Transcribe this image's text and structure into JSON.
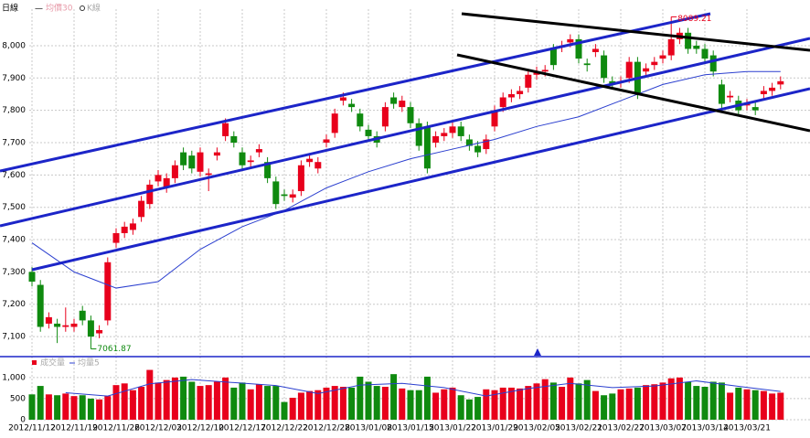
{
  "chart_data": [
    {
      "type": "candlestick",
      "title": "日線",
      "legend": [
        "均價30",
        "K線"
      ],
      "up_color": "#e8001c",
      "down_color": "#0f8a0f",
      "open": [
        7300,
        7260,
        7140,
        7140,
        7130,
        7130,
        7180,
        7150,
        7110,
        7150,
        7390,
        7420,
        7430,
        7470,
        7510,
        7580,
        7560,
        7590,
        7670,
        7660,
        7610,
        7600,
        7660,
        7720,
        7720,
        7670,
        7640,
        7670,
        7640,
        7580,
        7540,
        7530,
        7550,
        7640,
        7620,
        7700,
        7730,
        7830,
        7820,
        7790,
        7740,
        7720,
        7750,
        7840,
        7810,
        7810,
        7760,
        7750,
        7700,
        7720,
        7730,
        7750,
        7710,
        7690,
        7680,
        7750,
        7810,
        7840,
        7850,
        7870,
        7910,
        7920,
        7990,
        7995,
        8010,
        8020,
        7945,
        7980,
        7970,
        7890,
        7885,
        7900,
        7950,
        7920,
        7940,
        7960,
        7970,
        8020,
        8040,
        8000,
        7990,
        7970,
        7880,
        7840,
        7830,
        7815,
        7810,
        7850,
        7860,
        7880
      ],
      "high": [
        7315,
        7275,
        7175,
        7155,
        7190,
        7155,
        7195,
        7165,
        7135,
        7345,
        7435,
        7455,
        7465,
        7535,
        7585,
        7615,
        7605,
        7645,
        7685,
        7675,
        7685,
        7620,
        7685,
        7775,
        7735,
        7685,
        7660,
        7695,
        7655,
        7595,
        7555,
        7555,
        7645,
        7665,
        7655,
        7725,
        7805,
        7855,
        7835,
        7805,
        7755,
        7735,
        7825,
        7855,
        7845,
        7825,
        7775,
        7765,
        7735,
        7745,
        7765,
        7765,
        7725,
        7705,
        7725,
        7815,
        7855,
        7865,
        7875,
        7925,
        7935,
        7940,
        8005,
        8015,
        8035,
        8035,
        7960,
        8005,
        7985,
        7905,
        7905,
        7965,
        7965,
        7945,
        7965,
        7985,
        8089.21,
        8055,
        8055,
        8015,
        8005,
        7985,
        7895,
        7860,
        7845,
        7835,
        7825,
        7875,
        7885,
        7905
      ],
      "low": [
        7255,
        7115,
        7125,
        7080,
        7115,
        7115,
        7135,
        7061.87,
        7095,
        7135,
        7375,
        7405,
        7415,
        7455,
        7495,
        7565,
        7545,
        7575,
        7615,
        7605,
        7595,
        7550,
        7645,
        7705,
        7685,
        7615,
        7625,
        7655,
        7575,
        7495,
        7520,
        7515,
        7535,
        7625,
        7605,
        7685,
        7715,
        7815,
        7795,
        7735,
        7705,
        7685,
        7735,
        7805,
        7795,
        7745,
        7675,
        7605,
        7685,
        7705,
        7715,
        7705,
        7675,
        7655,
        7665,
        7735,
        7795,
        7825,
        7835,
        7855,
        7895,
        7905,
        7925,
        7980,
        7995,
        7945,
        7920,
        7965,
        7885,
        7865,
        7870,
        7885,
        7835,
        7905,
        7925,
        7945,
        7955,
        8005,
        7975,
        7975,
        7945,
        7905,
        7805,
        7825,
        7785,
        7800,
        7785,
        7835,
        7845,
        7865
      ],
      "close": [
        7270,
        7130,
        7160,
        7130,
        7135,
        7140,
        7150,
        7100,
        7120,
        7330,
        7420,
        7440,
        7450,
        7520,
        7570,
        7600,
        7590,
        7630,
        7630,
        7620,
        7670,
        7605,
        7670,
        7760,
        7700,
        7630,
        7645,
        7680,
        7590,
        7510,
        7535,
        7540,
        7630,
        7650,
        7640,
        7710,
        7790,
        7840,
        7810,
        7750,
        7720,
        7700,
        7810,
        7820,
        7830,
        7760,
        7690,
        7620,
        7720,
        7730,
        7750,
        7720,
        7690,
        7670,
        7710,
        7800,
        7840,
        7850,
        7860,
        7910,
        7920,
        7925,
        7940,
        8000,
        8020,
        7960,
        7940,
        7990,
        7900,
        7880,
        7890,
        7950,
        7850,
        7930,
        7950,
        7970,
        8020,
        8040,
        7990,
        7990,
        7960,
        7920,
        7820,
        7845,
        7800,
        7820,
        7800,
        7860,
        7870,
        7890
      ],
      "ma": {
        "name": "均價30",
        "color": "#2b3fcf",
        "x": [
          0,
          5,
          10,
          15,
          20,
          25,
          30,
          35,
          40,
          45,
          50,
          55,
          60,
          65,
          70,
          75,
          80,
          85,
          89
        ],
        "values": [
          7390,
          7300,
          7250,
          7270,
          7370,
          7440,
          7490,
          7560,
          7610,
          7650,
          7680,
          7710,
          7750,
          7780,
          7830,
          7880,
          7910,
          7920,
          7920
        ]
      },
      "annotations": [
        {
          "index": 76,
          "value": 8089.21,
          "label": "8089.21"
        },
        {
          "index": 7,
          "value": 7061.87,
          "label": "7061.87"
        }
      ],
      "ylim": [
        7038,
        8113
      ],
      "yticks": [
        {
          "value": 7100,
          "label": "7,100"
        },
        {
          "value": 7200,
          "label": "7,200"
        },
        {
          "value": 7300,
          "label": "7,300"
        },
        {
          "value": 7400,
          "label": "7,400"
        },
        {
          "value": 7500,
          "label": "7,500"
        },
        {
          "value": 7600,
          "label": "7,600"
        },
        {
          "value": 7700,
          "label": "7,700"
        },
        {
          "value": 7800,
          "label": "7,800"
        },
        {
          "value": 7900,
          "label": "7,900"
        },
        {
          "value": 8000,
          "label": "8,000"
        }
      ],
      "grid": true
    },
    {
      "type": "bar",
      "legend": [
        "成交量",
        "均量5"
      ],
      "categories": [
        "2012/11/12",
        null,
        null,
        null,
        null,
        "2012/11/19",
        null,
        null,
        null,
        null,
        "2012/11/26",
        null,
        null,
        null,
        null,
        "2012/12/03",
        null,
        null,
        null,
        null,
        "2012/12/10",
        null,
        null,
        null,
        null,
        "2012/12/17",
        null,
        null,
        null,
        null,
        "2012/12/22",
        null,
        null,
        null,
        null,
        "2012/12/28",
        null,
        null,
        null,
        null,
        "2013/01/08",
        null,
        null,
        null,
        null,
        "2013/01/15",
        null,
        null,
        null,
        null,
        "2013/01/22",
        null,
        null,
        null,
        null,
        "2013/01/29",
        null,
        null,
        null,
        null,
        "2013/02/05",
        null,
        null,
        null,
        null,
        "2013/02/21",
        null,
        null,
        null,
        null,
        "2013/02/27",
        null,
        null,
        null,
        null,
        "2013/03/07",
        null,
        null,
        null,
        null,
        "2013/03/14",
        null,
        null,
        null,
        null,
        "2013/03/21",
        null,
        null,
        null,
        null
      ],
      "values": [
        600,
        800,
        600,
        580,
        620,
        560,
        580,
        500,
        480,
        560,
        820,
        860,
        700,
        780,
        1180,
        880,
        940,
        1000,
        1020,
        900,
        800,
        820,
        900,
        1000,
        760,
        880,
        720,
        840,
        800,
        800,
        420,
        520,
        640,
        680,
        700,
        760,
        800,
        780,
        760,
        1020,
        900,
        800,
        780,
        1080,
        740,
        700,
        700,
        1020,
        640,
        720,
        760,
        580,
        480,
        540,
        720,
        700,
        760,
        760,
        740,
        800,
        860,
        960,
        880,
        780,
        1000,
        860,
        940,
        680,
        580,
        620,
        720,
        740,
        760,
        820,
        840,
        880,
        980,
        1000,
        900,
        800,
        780,
        900,
        880,
        640,
        760,
        720,
        700,
        680,
        620,
        640
      ],
      "ma": {
        "name": "均量5",
        "color": "#2b3fcf",
        "x": [
          4,
          9,
          14,
          19,
          24,
          29,
          34,
          39,
          44,
          49,
          54,
          59,
          64,
          69,
          74,
          79,
          84,
          89
        ],
        "values": [
          640,
          560,
          850,
          950,
          880,
          810,
          620,
          820,
          860,
          760,
          560,
          740,
          860,
          760,
          800,
          920,
          790,
          670
        ]
      },
      "ylim": [
        0,
        1170
      ],
      "yticks": [
        0,
        500,
        {
          "value": 1000,
          "label": "1,000"
        }
      ],
      "grid": true
    }
  ]
}
